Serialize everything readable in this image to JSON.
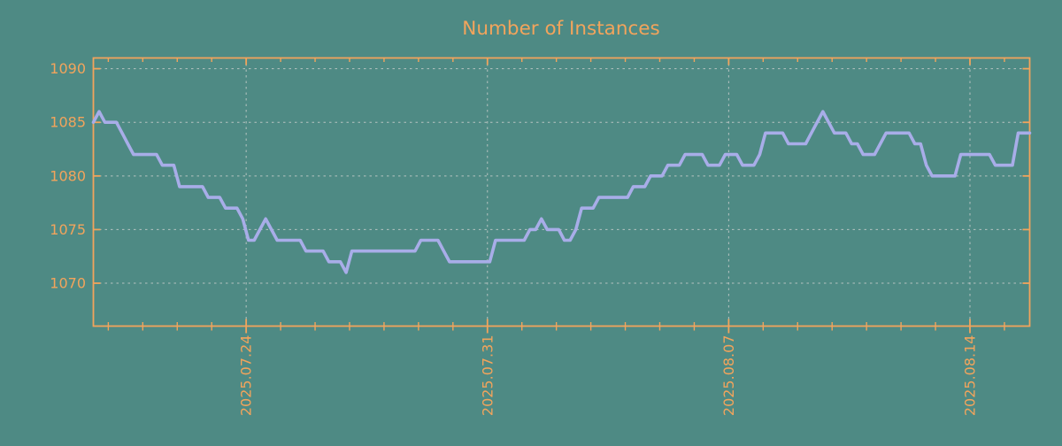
{
  "title": "Number of Instances",
  "colors": {
    "background": "#4e8a84",
    "accent_orange": "#f2a45c",
    "line": "#a8ade8",
    "grid": "#c9cdcc"
  },
  "chart_data": {
    "type": "line",
    "title": "Number of Instances",
    "xlabel": "",
    "ylabel": "",
    "grid": true,
    "legend_position": "none",
    "ylim": [
      1066,
      1091
    ],
    "yticks": [
      1070,
      1075,
      1080,
      1085,
      1090
    ],
    "x_index_range": [
      0,
      163
    ],
    "samples_per_day": 6,
    "xticks": [
      {
        "label": "2025.07.24",
        "index": 26.6
      },
      {
        "label": "2025.07.31",
        "index": 68.6
      },
      {
        "label": "2025.08.07",
        "index": 110.6
      },
      {
        "label": "2025.08.14",
        "index": 152.6
      }
    ],
    "x_minor": {
      "start_index": 2.6,
      "step": 6
    },
    "values": [
      1085,
      1086,
      1085,
      1085,
      1085,
      1084,
      1083,
      1082,
      1082,
      1082,
      1082,
      1082,
      1081,
      1081,
      1081,
      1079,
      1079,
      1079,
      1079,
      1079,
      1078,
      1078,
      1078,
      1077,
      1077,
      1077,
      1076,
      1074,
      1074,
      1075,
      1076,
      1075,
      1074,
      1074,
      1074,
      1074,
      1074,
      1073,
      1073,
      1073,
      1073,
      1072,
      1072,
      1072,
      1071,
      1073,
      1073,
      1073,
      1073,
      1073,
      1073,
      1073,
      1073,
      1073,
      1073,
      1073,
      1073,
      1074,
      1074,
      1074,
      1074,
      1073,
      1072,
      1072,
      1072,
      1072,
      1072,
      1072,
      1072,
      1072,
      1074,
      1074,
      1074,
      1074,
      1074,
      1074,
      1075,
      1075,
      1076,
      1075,
      1075,
      1075,
      1074,
      1074,
      1075,
      1077,
      1077,
      1077,
      1078,
      1078,
      1078,
      1078,
      1078,
      1078,
      1079,
      1079,
      1079,
      1080,
      1080,
      1080,
      1081,
      1081,
      1081,
      1082,
      1082,
      1082,
      1082,
      1081,
      1081,
      1081,
      1082,
      1082,
      1082,
      1081,
      1081,
      1081,
      1082,
      1084,
      1084,
      1084,
      1084,
      1083,
      1083,
      1083,
      1083,
      1084,
      1085,
      1086,
      1085,
      1084,
      1084,
      1084,
      1083,
      1083,
      1082,
      1082,
      1082,
      1083,
      1084,
      1084,
      1084,
      1084,
      1084,
      1083,
      1083,
      1081,
      1080,
      1080,
      1080,
      1080,
      1080,
      1082,
      1082,
      1082,
      1082,
      1082,
      1082,
      1081,
      1081,
      1081,
      1081,
      1084,
      1084,
      1084
    ]
  }
}
